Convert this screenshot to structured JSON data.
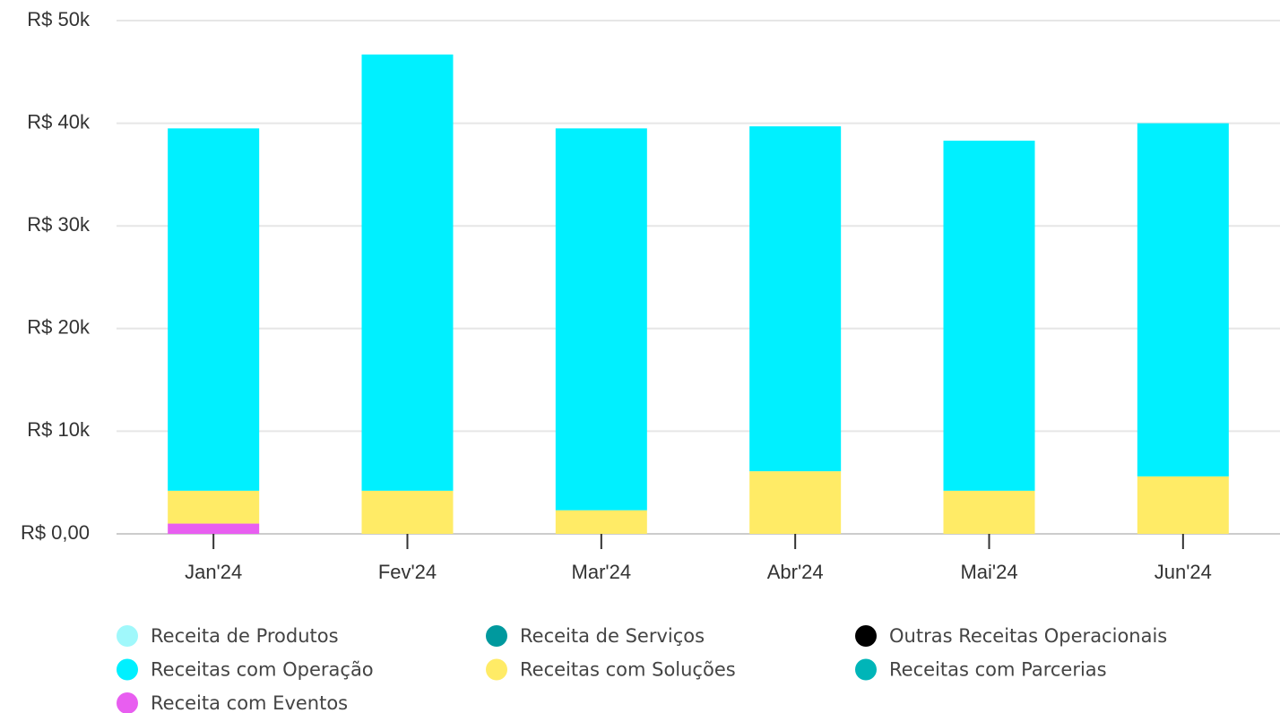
{
  "chart_data": {
    "type": "stacked_bar",
    "categories": [
      "Jan'24",
      "Fev'24",
      "Mar'24",
      "Abr'24",
      "Mai'24",
      "Jun'24"
    ],
    "series": [
      {
        "name": "Receita de Produtos",
        "color": "#a0f8fb",
        "values": [
          0,
          0,
          0,
          0,
          0,
          0
        ]
      },
      {
        "name": "Receita de Serviços",
        "color": "#00999e",
        "values": [
          0,
          0,
          0,
          0,
          0,
          0
        ]
      },
      {
        "name": "Outras Receitas Operacionais",
        "color": "#000000",
        "values": [
          0,
          0,
          0,
          0,
          0,
          0
        ]
      },
      {
        "name": "Receitas com Operação",
        "color": "#00f0ff",
        "values": [
          35300,
          42500,
          37200,
          33600,
          34100,
          34400
        ]
      },
      {
        "name": "Receitas com Soluções",
        "color": "#ffeb66",
        "values": [
          3200,
          4200,
          2300,
          6100,
          4200,
          5600
        ]
      },
      {
        "name": "Receitas com Parcerias",
        "color": "#00b5b8",
        "values": [
          0,
          0,
          0,
          0,
          0,
          0
        ]
      },
      {
        "name": "Receita com Eventos",
        "color": "#e85ef0",
        "values": [
          1000,
          0,
          0,
          0,
          0,
          0
        ]
      }
    ],
    "ylim": [
      0,
      50000
    ],
    "yticks": [
      {
        "value": 0,
        "label": "R$ 0,00"
      },
      {
        "value": 10000,
        "label": "R$ 10k"
      },
      {
        "value": 20000,
        "label": "R$ 20k"
      },
      {
        "value": 30000,
        "label": "R$ 30k"
      },
      {
        "value": 40000,
        "label": "R$ 40k"
      },
      {
        "value": 50000,
        "label": "R$ 50k"
      }
    ],
    "grid": true,
    "legend": "bottom"
  }
}
